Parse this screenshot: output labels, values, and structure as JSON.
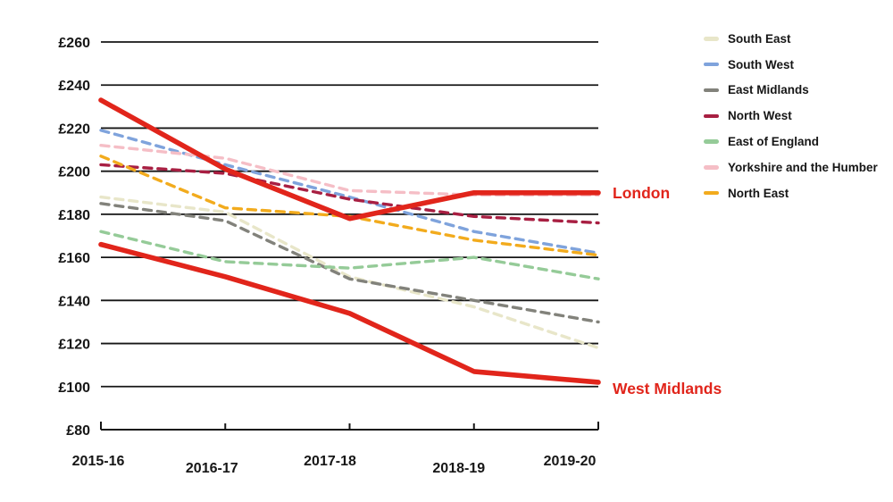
{
  "chart_data": {
    "type": "line",
    "x_categories": [
      "2015-16",
      "2016-17",
      "2017-18",
      "2018-19",
      "2019-20"
    ],
    "y_axis": {
      "min": 80,
      "max": 260,
      "step": 20,
      "tick_labels": [
        "£260",
        "£240",
        "£220",
        "£200",
        "£180",
        "£160",
        "£140",
        "£120",
        "£100",
        "£80"
      ]
    },
    "ylim": [
      80,
      260
    ],
    "xlabel": "",
    "ylabel": "",
    "grid": true,
    "legend_position": "top-right",
    "series": [
      {
        "name": "South East",
        "color": "#e8e6c9",
        "style": "dashed",
        "values": [
          188,
          181,
          151,
          137,
          118
        ]
      },
      {
        "name": "South West",
        "color": "#7fa3dc",
        "style": "dashed",
        "values": [
          219,
          203,
          188,
          172,
          162
        ]
      },
      {
        "name": "East Midlands",
        "color": "#82827b",
        "style": "dashed",
        "values": [
          185,
          177,
          150,
          140,
          130
        ]
      },
      {
        "name": "North West",
        "color": "#a81f42",
        "style": "dashed",
        "values": [
          203,
          199,
          187,
          179,
          176
        ]
      },
      {
        "name": "East of England",
        "color": "#95cb98",
        "style": "dashed",
        "values": [
          172,
          158,
          155,
          160,
          150
        ]
      },
      {
        "name": "Yorkshire and the Humber",
        "color": "#f5bec6",
        "style": "dashed",
        "values": [
          212,
          206,
          191,
          189,
          189
        ]
      },
      {
        "name": "North East",
        "color": "#f2ab1d",
        "style": "dashed",
        "values": [
          207,
          183,
          179,
          168,
          161
        ]
      }
    ],
    "highlight_series": [
      {
        "name": "London",
        "color": "#e1251b",
        "style": "solid",
        "values": [
          233,
          201,
          178,
          190,
          190
        ]
      },
      {
        "name": "West Midlands",
        "color": "#e1251b",
        "style": "solid",
        "values": [
          166,
          151,
          134,
          107,
          102
        ]
      }
    ]
  },
  "annotations": {
    "london": "London",
    "west_midlands": "West Midlands",
    "label_color": "#e1251b"
  }
}
